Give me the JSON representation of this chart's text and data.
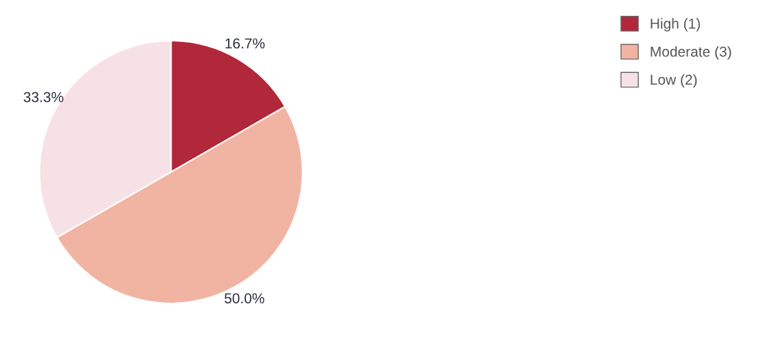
{
  "chart_data": {
    "type": "pie",
    "categories": [
      "High (1)",
      "Moderate (3)",
      "Low (2)"
    ],
    "values": [
      16.7,
      50.0,
      33.3
    ],
    "colors": [
      "#b0283a",
      "#f2b4a2",
      "#f6e2e6"
    ],
    "value_labels": [
      "16.7%",
      "50.0%",
      "33.3%"
    ],
    "legend": "top right"
  }
}
